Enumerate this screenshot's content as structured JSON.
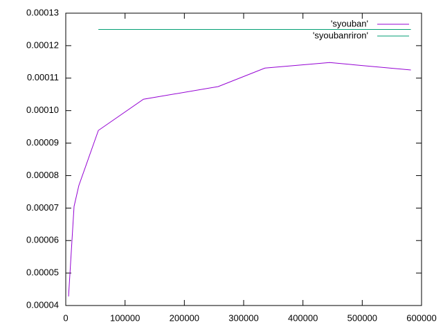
{
  "chart_data": {
    "type": "line",
    "legend": "top-right",
    "xlim": [
      0,
      600000
    ],
    "xticks": [
      0,
      100000,
      200000,
      300000,
      400000,
      500000,
      600000
    ],
    "ylim": [
      4e-05,
      0.00013
    ],
    "yticks": [
      4e-05,
      5e-05,
      6e-05,
      7e-05,
      8e-05,
      9e-05,
      {
        "value": 0.0001,
        "label": "0.00010"
      },
      0.00011,
      0.00012,
      0.00013
    ],
    "series": [
      {
        "name": "'syouban'",
        "color": "#9400d3",
        "x": [
          4700,
          14000,
          22000,
          55000,
          131000,
          257000,
          336000,
          445000,
          582000
        ],
        "values": [
          4.28e-05,
          7.05e-05,
          7.69e-05,
          9.39e-05,
          0.0001035,
          0.0001074,
          0.0001131,
          0.0001148,
          0.0001125
        ]
      },
      {
        "name": "'syoubanriron'",
        "color": "#009e73",
        "x": [
          55000,
          582000
        ],
        "values": [
          0.000125,
          0.000125
        ]
      }
    ]
  }
}
